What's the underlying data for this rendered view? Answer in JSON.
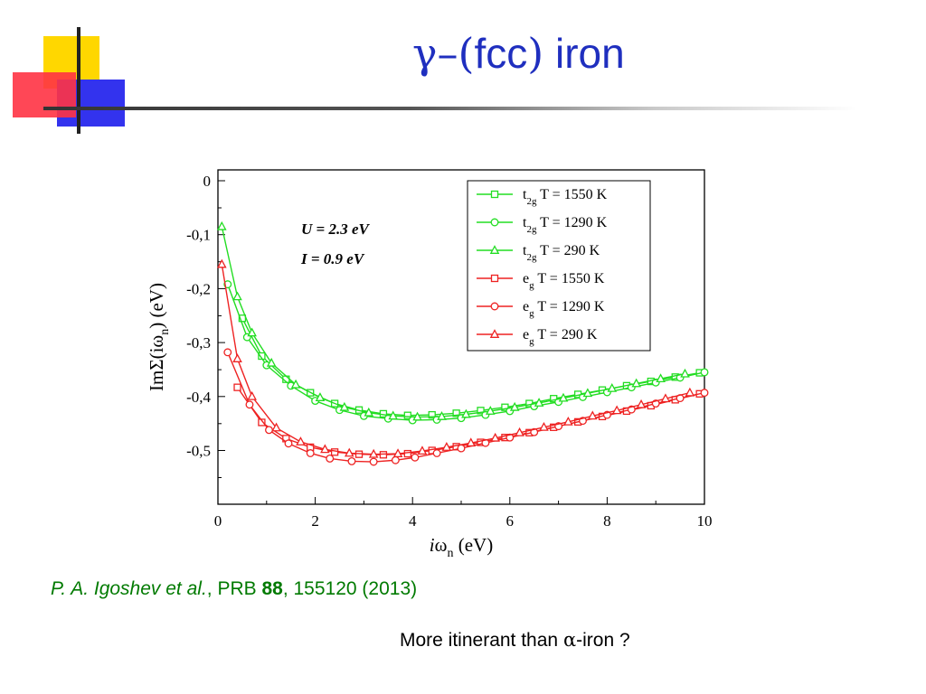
{
  "slide": {
    "title_greek": "γ–",
    "title_paren_open": "(",
    "title_fcc": "fcc",
    "title_paren_close": ")",
    "title_word": " iron"
  },
  "citation": {
    "authors": "P. A. Igoshev et al.",
    "journal": ", PRB ",
    "volume": "88",
    "rest": ", 155120 (2013)"
  },
  "note": {
    "text_before": "More itinerant than ",
    "alpha": "α",
    "text_after": "-iron ?"
  },
  "colors": {
    "title": "#1f2fbf",
    "citation": "#007a00",
    "t2g_series": "#22dd22",
    "eg_series": "#ee2222",
    "logo_yellow": "#ffd700",
    "logo_blue": "#3333ee",
    "logo_red": "#ff3344"
  },
  "chart_data": {
    "type": "line",
    "xlabel_i": "i",
    "xlabel_omega": "ω",
    "xlabel_sub": "n",
    "xlabel_unit": " (eV)",
    "ylabel_pre": "ImΣ(iω",
    "ylabel_sub": "n",
    "ylabel_post": ") (eV)",
    "xlim": [
      0,
      10
    ],
    "ylim": [
      -0.6,
      0.0
    ],
    "xticks": [
      "0",
      "2",
      "4",
      "6",
      "8",
      "10"
    ],
    "yticks": [
      "0",
      "-0,1",
      "-0,2",
      "-0,3",
      "-0,4",
      "-0,5"
    ],
    "annotations": [
      "U = 2.3 eV",
      "I = 0.9 eV"
    ],
    "legend_position": "top-right",
    "grid": false,
    "series": [
      {
        "name_main": "t",
        "name_sub": "2g",
        "name_rest": " T = 1550 K",
        "group": "t2g",
        "marker": "square",
        "x": [
          0.5,
          0.9,
          1.4,
          1.9,
          2.4,
          2.9,
          3.4,
          3.9,
          4.4,
          4.9,
          5.4,
          5.9,
          6.4,
          6.9,
          7.4,
          7.9,
          8.4,
          8.9,
          9.4,
          9.9
        ],
        "y": [
          -0.255,
          -0.325,
          -0.368,
          -0.393,
          -0.413,
          -0.425,
          -0.432,
          -0.435,
          -0.434,
          -0.431,
          -0.426,
          -0.42,
          -0.413,
          -0.404,
          -0.396,
          -0.388,
          -0.38,
          -0.372,
          -0.364,
          -0.356
        ]
      },
      {
        "name_main": "t",
        "name_sub": "2g",
        "name_rest": " T = 1290 K",
        "group": "t2g",
        "marker": "circle",
        "x": [
          0.2,
          0.6,
          1.0,
          1.5,
          2.0,
          2.5,
          3.0,
          3.5,
          4.0,
          4.5,
          5.0,
          5.5,
          6.0,
          6.5,
          7.0,
          7.5,
          8.0,
          8.5,
          9.0,
          9.5,
          10.0
        ],
        "y": [
          -0.192,
          -0.29,
          -0.342,
          -0.38,
          -0.408,
          -0.425,
          -0.436,
          -0.441,
          -0.444,
          -0.443,
          -0.44,
          -0.434,
          -0.427,
          -0.418,
          -0.41,
          -0.401,
          -0.392,
          -0.383,
          -0.374,
          -0.365,
          -0.355
        ]
      },
      {
        "name_main": "t",
        "name_sub": "2g",
        "name_rest": " T = 290 K",
        "group": "t2g",
        "marker": "triangle",
        "x": [
          0.08,
          0.4,
          0.7,
          1.1,
          1.6,
          2.1,
          2.6,
          3.1,
          3.6,
          4.1,
          4.6,
          5.1,
          5.6,
          6.1,
          6.6,
          7.1,
          7.6,
          8.1,
          8.6,
          9.1,
          9.6
        ],
        "y": [
          -0.085,
          -0.215,
          -0.282,
          -0.338,
          -0.378,
          -0.402,
          -0.42,
          -0.43,
          -0.436,
          -0.438,
          -0.437,
          -0.433,
          -0.427,
          -0.42,
          -0.412,
          -0.403,
          -0.394,
          -0.385,
          -0.376,
          -0.367,
          -0.358
        ]
      },
      {
        "name_main": "e",
        "name_sub": "g",
        "name_rest": " T = 1550 K",
        "group": "eg",
        "marker": "square",
        "x": [
          0.4,
          0.9,
          1.4,
          1.9,
          2.4,
          2.9,
          3.4,
          3.9,
          4.4,
          4.9,
          5.4,
          5.9,
          6.4,
          6.9,
          7.4,
          7.9,
          8.4,
          8.9,
          9.4,
          9.9
        ],
        "y": [
          -0.383,
          -0.448,
          -0.478,
          -0.494,
          -0.503,
          -0.507,
          -0.508,
          -0.506,
          -0.5,
          -0.493,
          -0.485,
          -0.476,
          -0.467,
          -0.457,
          -0.447,
          -0.437,
          -0.427,
          -0.417,
          -0.406,
          -0.395
        ]
      },
      {
        "name_main": "e",
        "name_sub": "g",
        "name_rest": " T = 1290 K",
        "group": "eg",
        "marker": "circle",
        "x": [
          0.2,
          0.65,
          1.05,
          1.45,
          1.9,
          2.3,
          2.75,
          3.2,
          3.65,
          4.05,
          4.5,
          5.0,
          5.5,
          6.0,
          6.5,
          7.0,
          7.5,
          8.0,
          8.5,
          9.0,
          9.5,
          10.0
        ],
        "y": [
          -0.318,
          -0.415,
          -0.462,
          -0.487,
          -0.505,
          -0.515,
          -0.52,
          -0.521,
          -0.518,
          -0.513,
          -0.505,
          -0.496,
          -0.486,
          -0.476,
          -0.466,
          -0.455,
          -0.445,
          -0.434,
          -0.424,
          -0.413,
          -0.403,
          -0.393
        ]
      },
      {
        "name_main": "e",
        "name_sub": "g",
        "name_rest": " T = 290 K",
        "group": "eg",
        "marker": "triangle",
        "x": [
          0.08,
          0.4,
          0.7,
          1.2,
          1.7,
          2.2,
          2.7,
          3.2,
          3.7,
          4.2,
          4.7,
          5.2,
          5.7,
          6.2,
          6.7,
          7.2,
          7.7,
          8.2,
          8.7,
          9.2,
          9.7
        ],
        "y": [
          -0.155,
          -0.33,
          -0.4,
          -0.458,
          -0.484,
          -0.498,
          -0.505,
          -0.507,
          -0.506,
          -0.501,
          -0.494,
          -0.486,
          -0.477,
          -0.467,
          -0.457,
          -0.447,
          -0.436,
          -0.426,
          -0.415,
          -0.404,
          -0.393
        ]
      }
    ]
  }
}
